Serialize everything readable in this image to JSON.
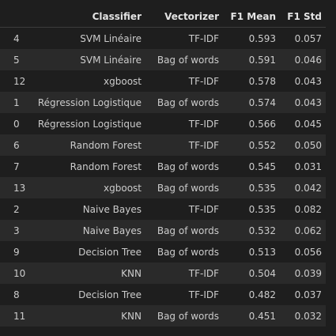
{
  "table": {
    "headers": {
      "index": "",
      "classifier": "Classifier",
      "vectorizer": "Vectorizer",
      "f1_mean": "F1 Mean",
      "f1_std": "F1 Std"
    },
    "rows": [
      {
        "index": "4",
        "classifier": "SVM Linéaire",
        "vectorizer": "TF-IDF",
        "f1_mean": "0.593",
        "f1_std": "0.057"
      },
      {
        "index": "5",
        "classifier": "SVM Linéaire",
        "vectorizer": "Bag of words",
        "f1_mean": "0.591",
        "f1_std": "0.046"
      },
      {
        "index": "12",
        "classifier": "xgboost",
        "vectorizer": "TF-IDF",
        "f1_mean": "0.578",
        "f1_std": "0.043"
      },
      {
        "index": "1",
        "classifier": "Régression Logistique",
        "vectorizer": "Bag of words",
        "f1_mean": "0.574",
        "f1_std": "0.043"
      },
      {
        "index": "0",
        "classifier": "Régression Logistique",
        "vectorizer": "TF-IDF",
        "f1_mean": "0.566",
        "f1_std": "0.045"
      },
      {
        "index": "6",
        "classifier": "Random Forest",
        "vectorizer": "TF-IDF",
        "f1_mean": "0.552",
        "f1_std": "0.050"
      },
      {
        "index": "7",
        "classifier": "Random Forest",
        "vectorizer": "Bag of words",
        "f1_mean": "0.545",
        "f1_std": "0.031"
      },
      {
        "index": "13",
        "classifier": "xgboost",
        "vectorizer": "Bag of words",
        "f1_mean": "0.535",
        "f1_std": "0.042"
      },
      {
        "index": "2",
        "classifier": "Naive Bayes",
        "vectorizer": "TF-IDF",
        "f1_mean": "0.535",
        "f1_std": "0.082"
      },
      {
        "index": "3",
        "classifier": "Naive Bayes",
        "vectorizer": "Bag of words",
        "f1_mean": "0.532",
        "f1_std": "0.062"
      },
      {
        "index": "9",
        "classifier": "Decision Tree",
        "vectorizer": "Bag of words",
        "f1_mean": "0.513",
        "f1_std": "0.056"
      },
      {
        "index": "10",
        "classifier": "KNN",
        "vectorizer": "TF-IDF",
        "f1_mean": "0.504",
        "f1_std": "0.039"
      },
      {
        "index": "8",
        "classifier": "Decision Tree",
        "vectorizer": "TF-IDF",
        "f1_mean": "0.482",
        "f1_std": "0.037"
      },
      {
        "index": "11",
        "classifier": "KNN",
        "vectorizer": "Bag of words",
        "f1_mean": "0.451",
        "f1_std": "0.032"
      }
    ]
  },
  "colors": {
    "background": "#1e1e1e",
    "stripe_row": "#2a2a2a",
    "text": "#cccccc",
    "header_text": "#e3e3e3"
  }
}
